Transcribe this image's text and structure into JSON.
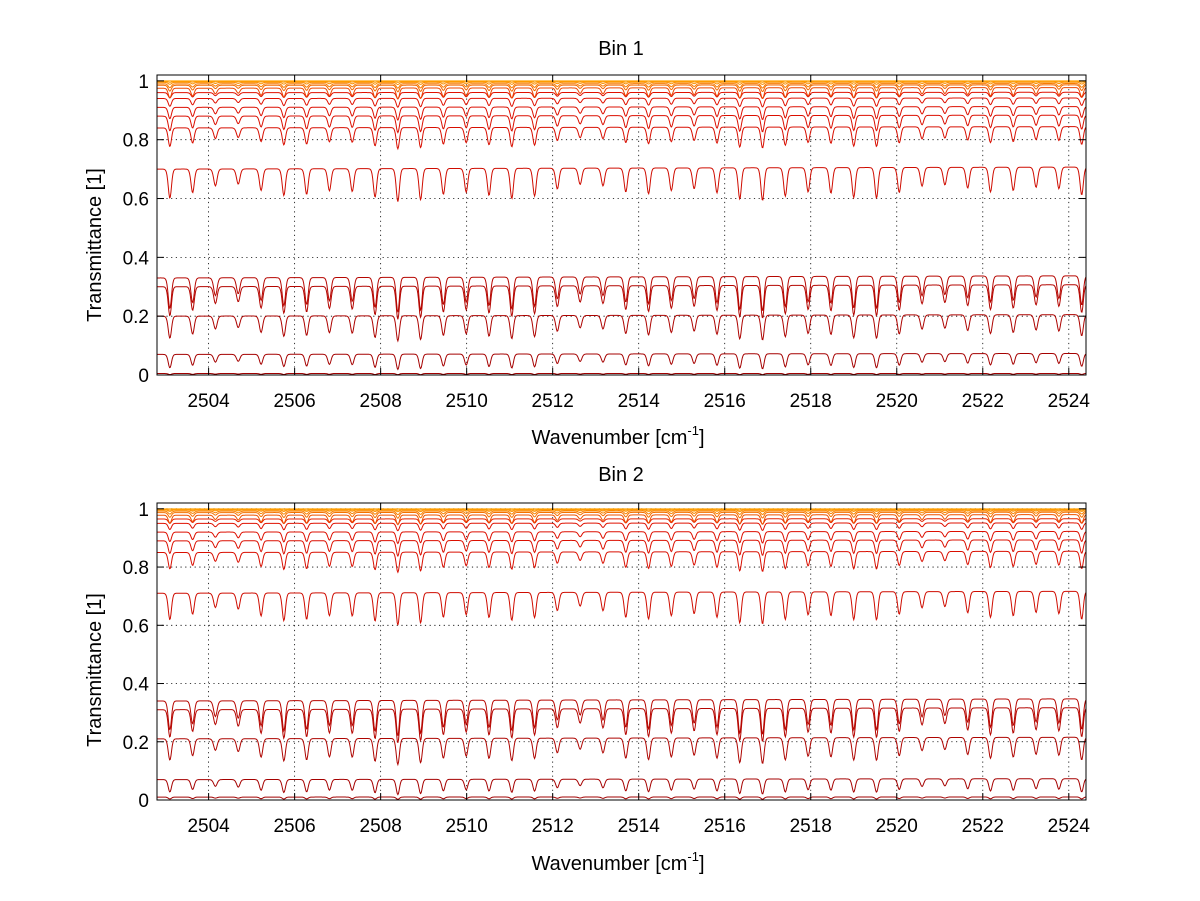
{
  "colors": {
    "background": "#ffffff",
    "axes": "#000000",
    "grid": "#000000",
    "series_low": "#a00000",
    "series_mid": "#e01000",
    "series_high": "#ffa000"
  },
  "chart_data": [
    {
      "type": "line",
      "title": "Bin 1",
      "xlabel": "Wavenumber [cm",
      "xlabel_sup": "-1",
      "xlabel_close": "]",
      "ylabel": "Transmittance [1]",
      "xlim": [
        2502.8,
        2524.4
      ],
      "ylim": [
        0,
        1.02
      ],
      "xticks": [
        "2504",
        "2506",
        "2508",
        "2510",
        "2512",
        "2514",
        "2516",
        "2518",
        "2520",
        "2522",
        "2524"
      ],
      "yticks": [
        "0",
        "0.2",
        "0.4",
        "0.6",
        "0.8",
        "1"
      ],
      "grid": true,
      "line_period_cm": 0.53,
      "series_baselines": [
        0.0,
        0.005,
        0.07,
        0.2,
        0.3,
        0.33,
        0.7,
        0.84,
        0.88,
        0.91,
        0.94,
        0.96,
        0.975,
        0.985,
        0.99,
        0.995,
        0.998,
        1.0
      ]
    },
    {
      "type": "line",
      "title": "Bin 2",
      "xlabel": "Wavenumber [cm",
      "xlabel_sup": "-1",
      "xlabel_close": "]",
      "ylabel": "Transmittance [1]",
      "xlim": [
        2502.8,
        2524.4
      ],
      "ylim": [
        0,
        1.02
      ],
      "xticks": [
        "2504",
        "2506",
        "2508",
        "2510",
        "2512",
        "2514",
        "2516",
        "2518",
        "2520",
        "2522",
        "2524"
      ],
      "yticks": [
        "0",
        "0.2",
        "0.4",
        "0.6",
        "0.8",
        "1"
      ],
      "grid": true,
      "line_period_cm": 0.53,
      "series_baselines": [
        0.0,
        0.01,
        0.07,
        0.21,
        0.31,
        0.34,
        0.71,
        0.85,
        0.89,
        0.92,
        0.95,
        0.965,
        0.978,
        0.987,
        0.992,
        0.996,
        0.998,
        1.0
      ]
    }
  ]
}
